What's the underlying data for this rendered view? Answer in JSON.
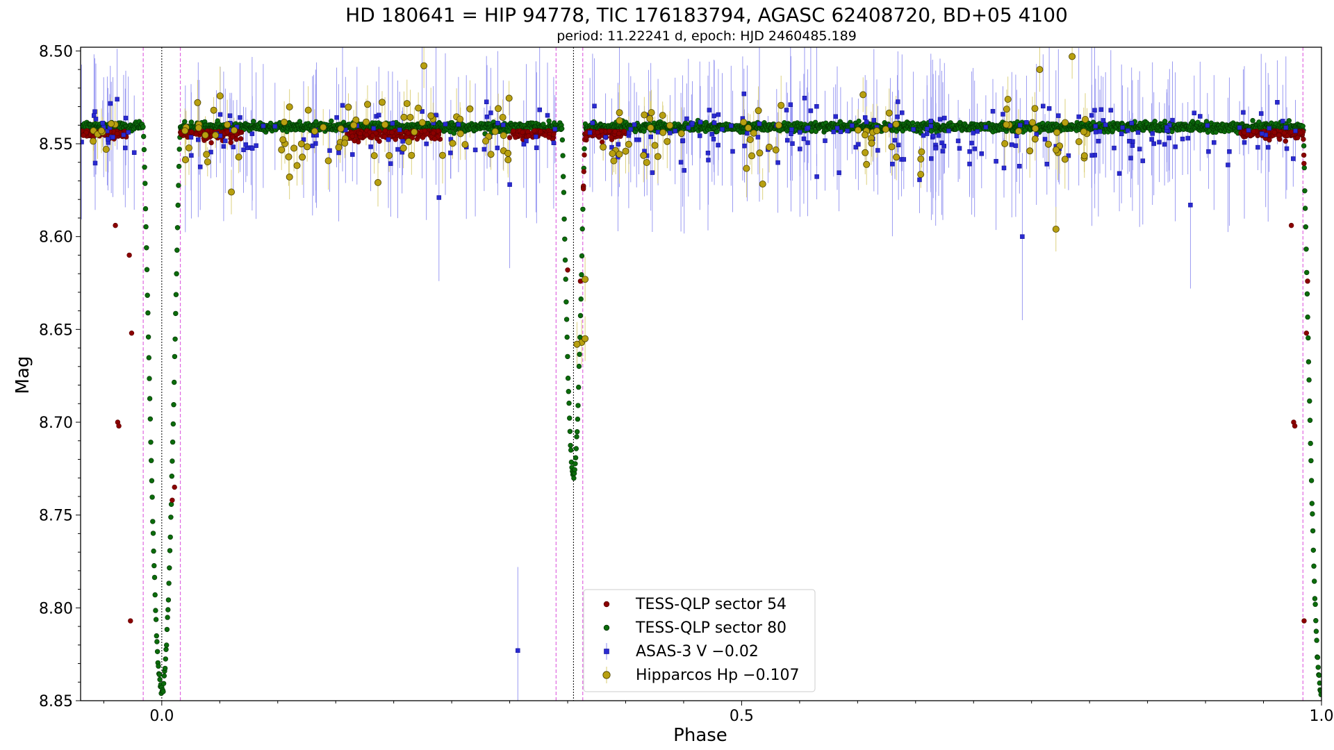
{
  "chart_data": {
    "type": "scatter",
    "title": "HD 180641 = HIP 94778, TIC 176183794, AGASC 62408720, BD+05 4100",
    "subtitle": "period: 11.22241 d, epoch: HJD 2460485.189",
    "xlabel": "Phase",
    "ylabel": "Mag",
    "xlim": [
      -0.07,
      1.0
    ],
    "ylim": [
      8.85,
      8.498
    ],
    "y_inverted": true,
    "x_major_ticks": [
      0.0,
      0.5,
      1.0
    ],
    "x_tick_labels": [
      "0.0",
      "0.5",
      "1.0"
    ],
    "x_minor_step": 0.05,
    "y_major_ticks": [
      8.5,
      8.55,
      8.6,
      8.65,
      8.7,
      8.75,
      8.8,
      8.85
    ],
    "y_tick_labels": [
      "8.50",
      "8.55",
      "8.60",
      "8.65",
      "8.70",
      "8.75",
      "8.80",
      "8.85"
    ],
    "y_minor_step": 0.01,
    "grid": false,
    "legend_position": "lower-center",
    "reference_lines": {
      "black_dotted_x": [
        0.0,
        0.355
      ],
      "violet_dashed_x": [
        -0.016,
        0.016,
        0.34,
        0.363,
        0.984
      ]
    },
    "eclipses": {
      "primary": {
        "phase": 0.0,
        "min_mag": 8.845,
        "half_width": 0.016
      },
      "secondary": {
        "phase": 0.355,
        "min_mag": 8.728,
        "half_width": 0.01
      },
      "baseline_mag": 8.541
    },
    "series": [
      {
        "name": "TESS-QLP sector 54",
        "color": "#8b0000",
        "edge": "#5a0000",
        "marker": "circle",
        "note_points": [
          [
            -0.04,
            8.594
          ],
          [
            -0.028,
            8.61
          ],
          [
            -0.026,
            8.652
          ],
          [
            -0.027,
            8.807
          ],
          [
            -0.038,
            8.7
          ],
          [
            -0.037,
            8.702
          ],
          [
            0.985,
            8.807
          ],
          [
            0.987,
            8.652
          ],
          [
            0.988,
            8.624
          ],
          [
            0.976,
            8.7
          ],
          [
            0.977,
            8.702
          ],
          [
            0.974,
            8.594
          ],
          [
            0.011,
            8.735
          ],
          [
            0.009,
            8.742
          ],
          [
            0.35,
            8.618
          ],
          [
            0.361,
            8.624
          ]
        ]
      },
      {
        "name": "TESS-QLP sector 80",
        "color": "#0b6b0b",
        "edge": "#033003",
        "marker": "circle"
      },
      {
        "name": "ASAS-3 V −0.02",
        "color": "#2a2ad0",
        "edge": "#0c0c90",
        "errorbar_color": "#8f8ff0",
        "marker": "square",
        "note_points": [
          [
            0.307,
            8.823
          ],
          [
            0.742,
            8.6
          ],
          [
            0.887,
            8.583
          ],
          [
            0.239,
            8.579
          ],
          [
            0.3,
            8.572
          ]
        ]
      },
      {
        "name": "Hipparcos Hp −0.107",
        "color": "#b8a010",
        "edge": "#4a4000",
        "errorbar_color": "#d8cc70",
        "marker": "circle",
        "note_points": [
          [
            0.771,
            8.596
          ],
          [
            0.362,
            8.657
          ],
          [
            0.365,
            8.655
          ],
          [
            0.358,
            8.658
          ],
          [
            0.785,
            8.503
          ],
          [
            0.757,
            8.51
          ],
          [
            0.365,
            8.623
          ],
          [
            0.226,
            8.508
          ],
          [
            -0.052,
            8.543
          ],
          [
            -0.048,
            8.553
          ],
          [
            0.02,
            8.543
          ],
          [
            0.06,
            8.576
          ],
          [
            0.4,
            8.554
          ],
          [
            0.532,
            8.54
          ]
        ]
      }
    ]
  }
}
